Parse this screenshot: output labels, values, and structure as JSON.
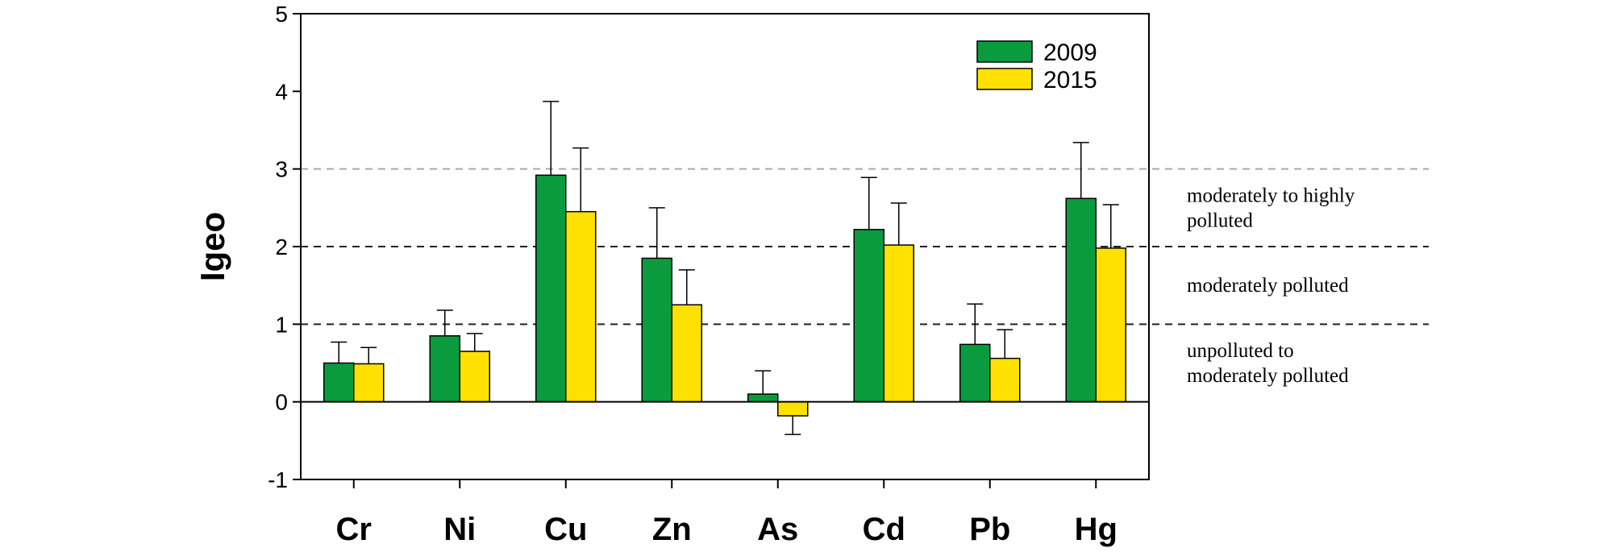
{
  "chart_data": {
    "type": "bar",
    "ylabel": "Igeo",
    "ylim": [
      -1,
      5
    ],
    "yticks": [
      -1,
      0,
      1,
      2,
      3,
      4,
      5
    ],
    "categories": [
      "Cr",
      "Ni",
      "Cu",
      "Zn",
      "As",
      "Cd",
      "Pb",
      "Hg"
    ],
    "series": [
      {
        "name": "2009",
        "color": "#0b9b3f",
        "values": [
          0.5,
          0.85,
          2.92,
          1.85,
          0.1,
          2.22,
          0.74,
          2.62
        ],
        "error": [
          0.27,
          0.33,
          0.95,
          0.65,
          0.3,
          0.67,
          0.52,
          0.72
        ]
      },
      {
        "name": "2015",
        "color": "#ffe100",
        "values": [
          0.49,
          0.65,
          2.45,
          1.25,
          -0.18,
          2.02,
          0.56,
          1.98
        ],
        "error": [
          0.21,
          0.23,
          0.82,
          0.45,
          0.24,
          0.54,
          0.37,
          0.56
        ]
      }
    ],
    "reference_lines": [
      {
        "y": 1,
        "color": "#222222"
      },
      {
        "y": 2,
        "color": "#222222"
      },
      {
        "y": 3,
        "color": "#aaaaaa"
      }
    ],
    "zone_labels": [
      {
        "lines": [
          "moderately to highly",
          "polluted"
        ],
        "y_from": 2,
        "y_to": 3
      },
      {
        "lines": [
          "moderately polluted"
        ],
        "y_from": 1,
        "y_to": 2
      },
      {
        "lines": [
          "unpolluted to",
          "moderately polluted"
        ],
        "y_from": 0,
        "y_to": 1
      }
    ],
    "legend_position": "top-right"
  }
}
